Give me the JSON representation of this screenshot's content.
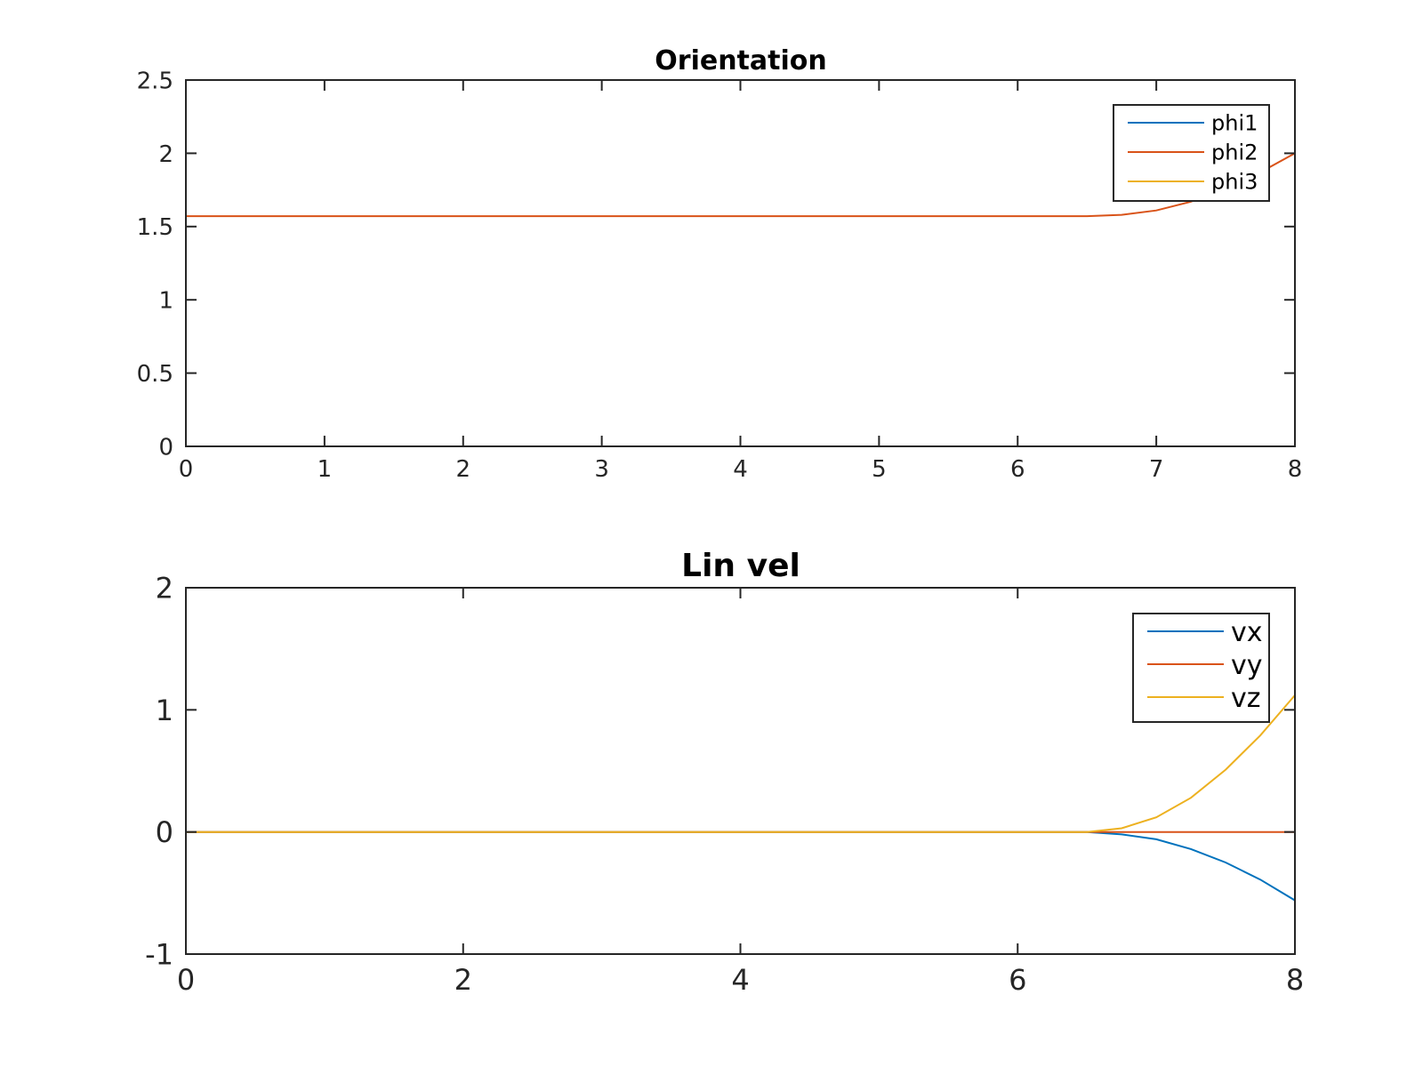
{
  "chart_data": [
    {
      "type": "line",
      "title": "Orientation",
      "xlabel": "",
      "ylabel": "",
      "xlim": [
        0,
        8
      ],
      "ylim": [
        0,
        2.5
      ],
      "xticks": [
        0,
        1,
        2,
        3,
        4,
        5,
        6,
        7,
        8
      ],
      "xtick_labels": [
        "0",
        "1",
        "2",
        "3",
        "4",
        "5",
        "6",
        "7",
        "8"
      ],
      "yticks": [
        0,
        0.5,
        1,
        1.5,
        2,
        2.5
      ],
      "ytick_labels": [
        "0",
        "0.5",
        "1",
        "1.5",
        "2",
        "2.5"
      ],
      "grid": false,
      "legend_position": "top-right",
      "series": [
        {
          "name": "phi1",
          "color": "#0072BD",
          "x": [
            0,
            8
          ],
          "y": [
            0,
            0
          ]
        },
        {
          "name": "phi2",
          "color": "#D95319",
          "x": [
            0,
            1,
            2,
            3,
            4,
            5,
            6,
            6.5,
            6.75,
            7,
            7.25,
            7.5,
            7.75,
            8
          ],
          "y": [
            1.571,
            1.571,
            1.571,
            1.571,
            1.571,
            1.571,
            1.571,
            1.571,
            1.58,
            1.61,
            1.67,
            1.76,
            1.87,
            2.0
          ]
        },
        {
          "name": "phi3",
          "color": "#EDB120",
          "x": [
            0,
            8
          ],
          "y": [
            0,
            0
          ]
        }
      ]
    },
    {
      "type": "line",
      "title": "Lin vel",
      "xlabel": "",
      "ylabel": "",
      "xlim": [
        0,
        8
      ],
      "ylim": [
        -1,
        2
      ],
      "xticks": [
        0,
        2,
        4,
        6,
        8
      ],
      "xtick_labels": [
        "0",
        "2",
        "4",
        "6",
        "8"
      ],
      "yticks": [
        -1,
        0,
        1,
        2
      ],
      "ytick_labels": [
        "-1",
        "0",
        "1",
        "2"
      ],
      "grid": false,
      "legend_position": "top-right",
      "series": [
        {
          "name": "vx",
          "color": "#0072BD",
          "x": [
            0,
            1,
            2,
            3,
            4,
            5,
            6,
            6.5,
            6.75,
            7,
            7.25,
            7.5,
            7.75,
            8
          ],
          "y": [
            0,
            0,
            0,
            0,
            0,
            0,
            0,
            0,
            -0.02,
            -0.06,
            -0.14,
            -0.25,
            -0.39,
            -0.56
          ]
        },
        {
          "name": "vy",
          "color": "#D95319",
          "x": [
            0,
            8
          ],
          "y": [
            0,
            0
          ]
        },
        {
          "name": "vz",
          "color": "#EDB120",
          "x": [
            0,
            1,
            2,
            3,
            4,
            5,
            6,
            6.5,
            6.75,
            7,
            7.25,
            7.5,
            7.75,
            8
          ],
          "y": [
            0,
            0,
            0,
            0,
            0,
            0,
            0,
            0,
            0.03,
            0.12,
            0.28,
            0.51,
            0.79,
            1.12
          ]
        }
      ]
    }
  ]
}
